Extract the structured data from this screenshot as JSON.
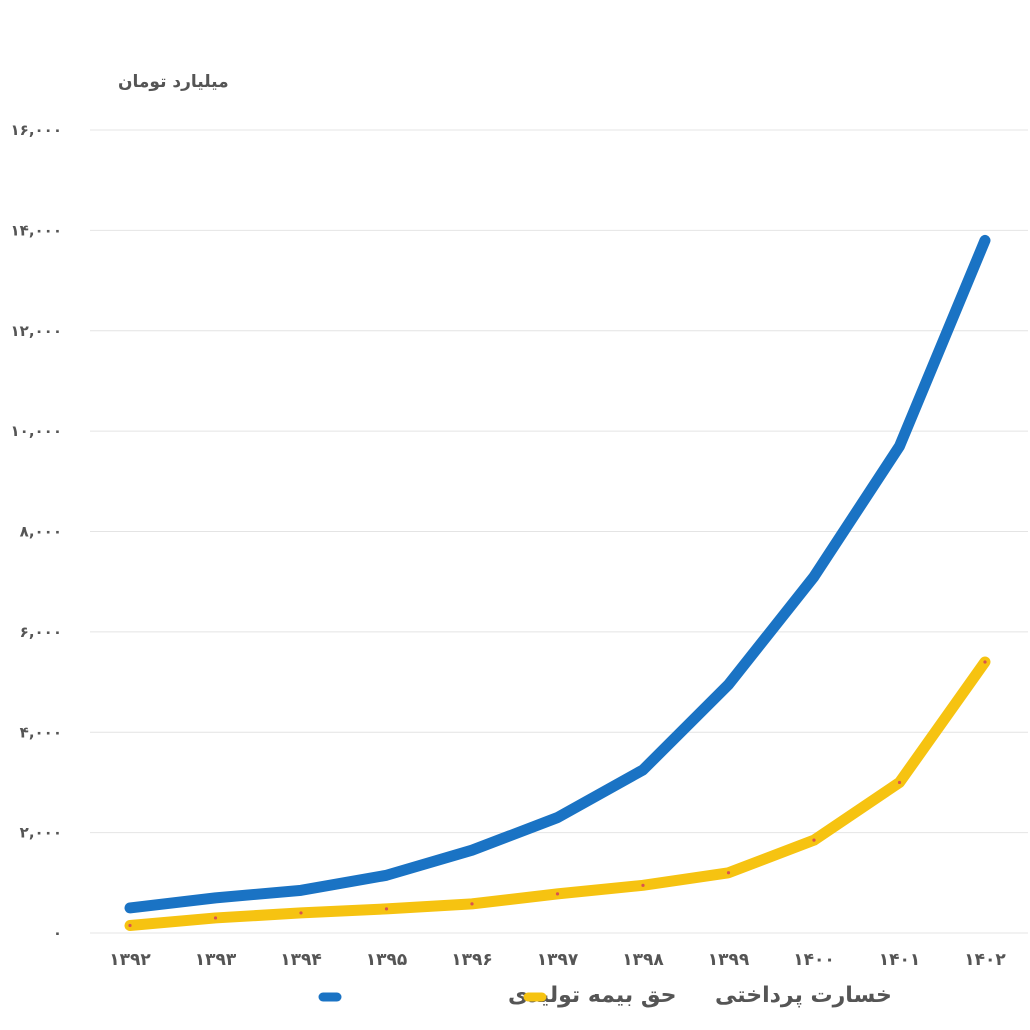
{
  "chart_data": {
    "type": "line",
    "unit_label": "میلیارد تومان",
    "categories": [
      "۱۳۹۲",
      "۱۳۹۳",
      "۱۳۹۴",
      "۱۳۹۵",
      "۱۳۹۶",
      "۱۳۹۷",
      "۱۳۹۸",
      "۱۳۹۹",
      "۱۴۰۰",
      "۱۴۰۱",
      "۱۴۰۲"
    ],
    "y_ticks": [
      {
        "value": 0,
        "label": "۰"
      },
      {
        "value": 2000,
        "label": "۲,۰۰۰"
      },
      {
        "value": 4000,
        "label": "۴,۰۰۰"
      },
      {
        "value": 6000,
        "label": "۶,۰۰۰"
      },
      {
        "value": 8000,
        "label": "۸,۰۰۰"
      },
      {
        "value": 10000,
        "label": "۱۰,۰۰۰"
      },
      {
        "value": 12000,
        "label": "۱۲,۰۰۰"
      },
      {
        "value": 14000,
        "label": "۱۴,۰۰۰"
      },
      {
        "value": 16000,
        "label": "۱۶,۰۰۰"
      }
    ],
    "ylim": [
      0,
      16000
    ],
    "grid": true,
    "legend_position": "bottom",
    "series": [
      {
        "name": "حق بیمه تولیدی",
        "color": "#1a73c4",
        "values": [
          500,
          700,
          850,
          1150,
          1650,
          2300,
          3250,
          4950,
          7100,
          9700,
          13800
        ]
      },
      {
        "name": "خسارت پرداختی",
        "color": "#f6c311",
        "values": [
          150,
          300,
          400,
          480,
          580,
          780,
          950,
          1200,
          1850,
          3000,
          5400
        ]
      }
    ]
  }
}
